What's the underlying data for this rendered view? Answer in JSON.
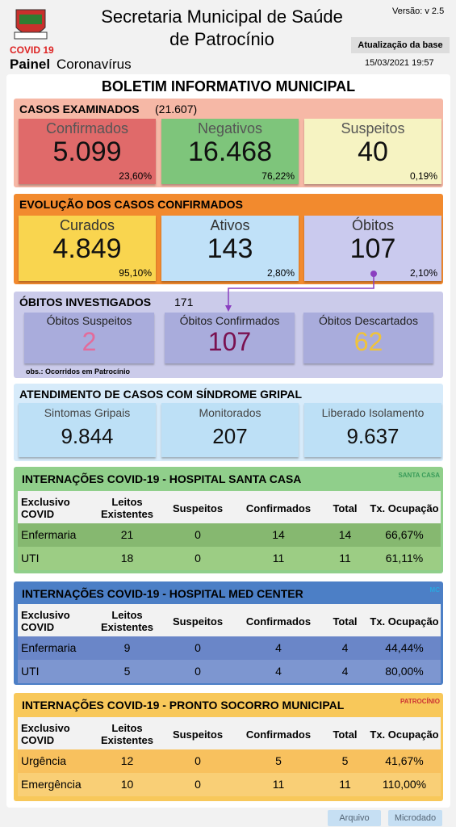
{
  "header": {
    "covid": "COVID 19",
    "painel": "Painel",
    "coronavirus": "Coronavírus",
    "title_line1": "Secretaria Municipal de Saúde",
    "title_line2": "de Patrocínio",
    "version": "Versão: v 2.5",
    "update_label": "Atualização da base",
    "update_date": "15/03/2021 19:57"
  },
  "bulletin_title": "BOLETIM INFORMATIVO MUNICIPAL",
  "cases_examined": {
    "title": "CASOS EXAMINADOS",
    "total": "(21.607)",
    "cards": [
      {
        "label": "Confirmados",
        "value": "5.099",
        "pct": "23,60%"
      },
      {
        "label": "Negativos",
        "value": "16.468",
        "pct": "76,22%"
      },
      {
        "label": "Suspeitos",
        "value": "40",
        "pct": "0,19%"
      }
    ]
  },
  "evolution": {
    "title": "EVOLUÇÃO DOS CASOS CONFIRMADOS",
    "cards": [
      {
        "label": "Curados",
        "value": "4.849",
        "pct": "95,10%"
      },
      {
        "label": "Ativos",
        "value": "143",
        "pct": "2,80%"
      },
      {
        "label": "Óbitos",
        "value": "107",
        "pct": "2,10%"
      }
    ]
  },
  "deaths_investigated": {
    "title": "ÓBITOS INVESTIGADOS",
    "total": "171",
    "cards": [
      {
        "label": "Óbitos Suspeitos",
        "value": "2"
      },
      {
        "label": "Óbitos Confirmados",
        "value": "107"
      },
      {
        "label": "Óbitos Descartados",
        "value": "62"
      }
    ],
    "note": "obs.: Ocorridos em Patrocínio"
  },
  "flu_syndrome": {
    "title": "ATENDIMENTO DE CASOS COM SÍNDROME GRIPAL",
    "cards": [
      {
        "label": "Sintomas Gripais",
        "value": "9.844"
      },
      {
        "label": "Monitorados",
        "value": "207"
      },
      {
        "label": "Liberado Isolamento",
        "value": "9.637"
      }
    ]
  },
  "hospitals": [
    {
      "title": "INTERNAÇÕES COVID-19 - HOSPITAL SANTA CASA",
      "logo": "SANTA CASA",
      "columns": [
        "Exclusivo COVID",
        "Leitos Existentes",
        "Suspeitos",
        "Confirmados",
        "Total",
        "Tx. Ocupação"
      ],
      "rows": [
        [
          "Enfermaria",
          "21",
          "0",
          "14",
          "14",
          "66,67%"
        ],
        [
          "UTI",
          "18",
          "0",
          "11",
          "11",
          "61,11%"
        ]
      ]
    },
    {
      "title": "INTERNAÇÕES COVID-19 - HOSPITAL MED CENTER",
      "logo": "MC",
      "columns": [
        "Exclusivo COVID",
        "Leitos Existentes",
        "Suspeitos",
        "Confirmados",
        "Total",
        "Tx. Ocupação"
      ],
      "rows": [
        [
          "Enfermaria",
          "9",
          "0",
          "4",
          "4",
          "44,44%"
        ],
        [
          "UTI",
          "5",
          "0",
          "4",
          "4",
          "80,00%"
        ]
      ]
    },
    {
      "title": "INTERNAÇÕES COVID-19 - PRONTO SOCORRO MUNICIPAL",
      "logo": "PATROCÍNIO",
      "columns": [
        "Exclusivo COVID",
        "Leitos Existentes",
        "Suspeitos",
        "Confirmados",
        "Total",
        "Tx. Ocupação"
      ],
      "rows": [
        [
          "Urgência",
          "12",
          "0",
          "5",
          "5",
          "41,67%"
        ],
        [
          "Emergência",
          "10",
          "0",
          "11",
          "11",
          "110,00%"
        ]
      ]
    }
  ],
  "footer": {
    "buttons": [
      "Arquivo",
      "Microdado"
    ]
  }
}
